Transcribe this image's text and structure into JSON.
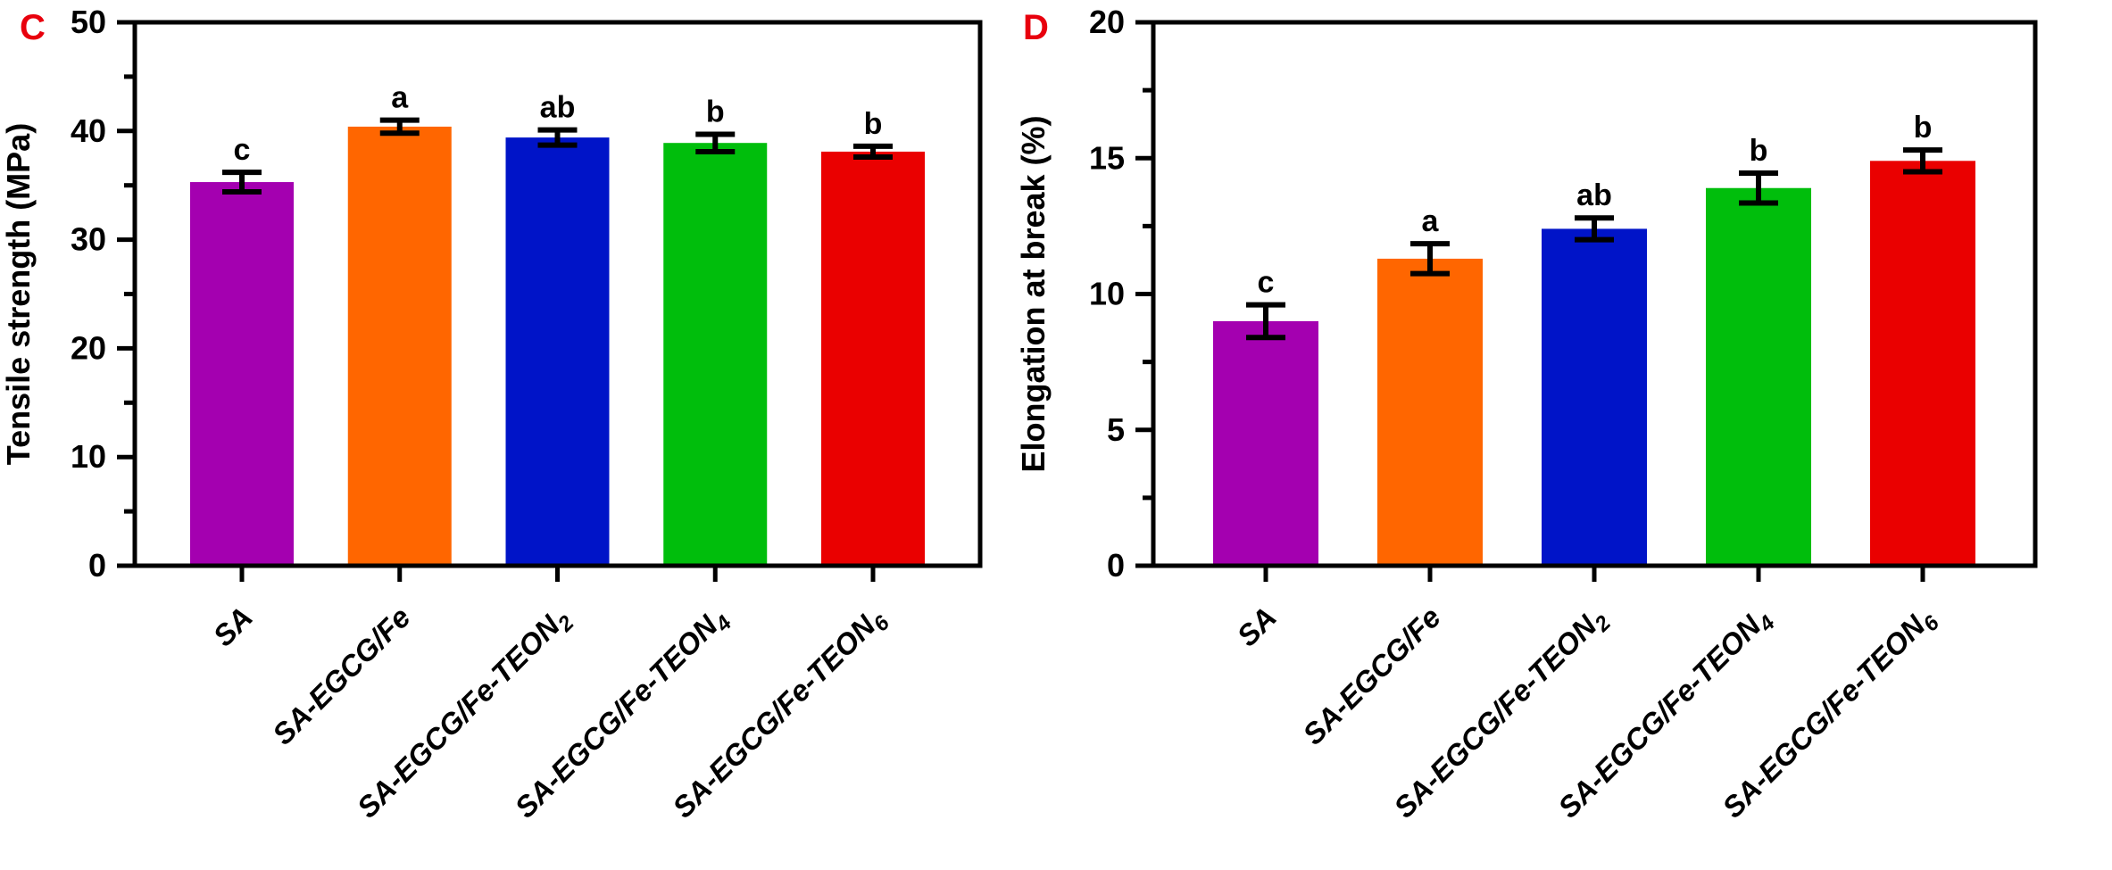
{
  "figure": {
    "background_color": "#ffffff",
    "axis_color": "#000000",
    "panel_label_color": "#e8000d"
  },
  "chart_data": [
    {
      "type": "bar",
      "panel_label": "C",
      "title": "",
      "xlabel": "",
      "ylabel": "Tensile strength (MPa)",
      "ylim": [
        0,
        50
      ],
      "ytick_major": 10,
      "ytick_minor": 5,
      "ytick_labels": [
        "0",
        "10",
        "20",
        "30",
        "40",
        "50"
      ],
      "grid": false,
      "legend": null,
      "categories": [
        {
          "base": "SA",
          "sub": ""
        },
        {
          "base": "SA-EGCG/Fe",
          "sub": ""
        },
        {
          "base": "SA-EGCG/Fe-TEON",
          "sub": "2"
        },
        {
          "base": "SA-EGCG/Fe-TEON",
          "sub": "4"
        },
        {
          "base": "SA-EGCG/Fe-TEON",
          "sub": "6"
        }
      ],
      "values": [
        35.3,
        40.4,
        39.4,
        38.9,
        38.1
      ],
      "errors": [
        0.9,
        0.6,
        0.7,
        0.8,
        0.5
      ],
      "sig_letters": [
        "c",
        "a",
        "ab",
        "b",
        "b"
      ],
      "bar_colors": [
        "#a400b0",
        "#ff6600",
        "#0014c8",
        "#00be0c",
        "#ea0000"
      ]
    },
    {
      "type": "bar",
      "panel_label": "D",
      "title": "",
      "xlabel": "",
      "ylabel": "Elongation at break (%)",
      "ylim": [
        0,
        20
      ],
      "ytick_major": 5,
      "ytick_minor": 2.5,
      "ytick_labels": [
        "0",
        "5",
        "10",
        "15",
        "20"
      ],
      "grid": false,
      "legend": null,
      "categories": [
        {
          "base": "SA",
          "sub": ""
        },
        {
          "base": "SA-EGCG/Fe",
          "sub": ""
        },
        {
          "base": "SA-EGCG/Fe-TEON",
          "sub": "2"
        },
        {
          "base": "SA-EGCG/Fe-TEON",
          "sub": "4"
        },
        {
          "base": "SA-EGCG/Fe-TEON",
          "sub": "6"
        }
      ],
      "values": [
        9.0,
        11.3,
        12.4,
        13.9,
        14.9
      ],
      "errors": [
        0.6,
        0.55,
        0.4,
        0.55,
        0.4
      ],
      "sig_letters": [
        "c",
        "a",
        "ab",
        "b",
        "b"
      ],
      "bar_colors": [
        "#a400b0",
        "#ff6600",
        "#0014c8",
        "#00be0c",
        "#ea0000"
      ]
    }
  ]
}
